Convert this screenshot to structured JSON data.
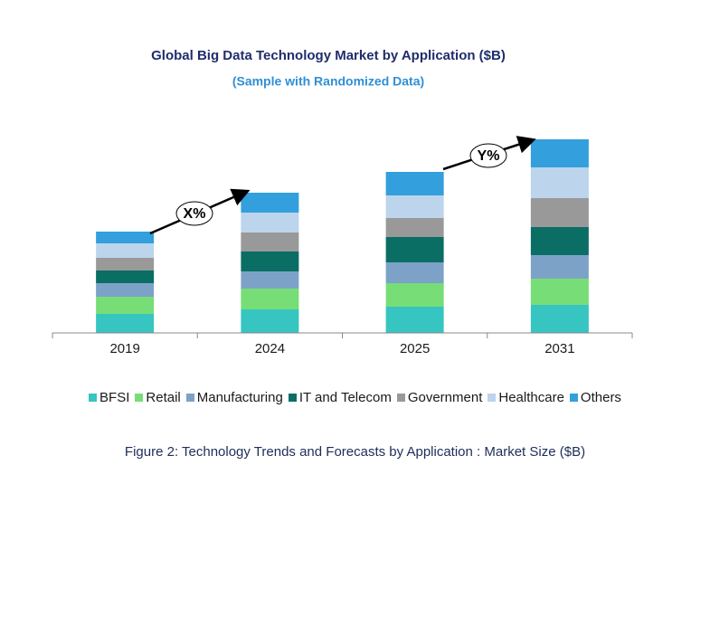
{
  "chart_data": {
    "type": "stacked-bar",
    "title": "Global Big Data Technology Market by Application ($B)",
    "subtitle": "(Sample with Randomized Data)",
    "categories": [
      "2019",
      "2024",
      "2025",
      "2031"
    ],
    "series": [
      {
        "name": "BFSI",
        "color": "#36c5c0",
        "values": [
          21,
          26,
          29,
          31
        ]
      },
      {
        "name": "Retail",
        "color": "#77dd77",
        "values": [
          19,
          23,
          26,
          29
        ]
      },
      {
        "name": "Manufacturing",
        "color": "#7da2c8",
        "values": [
          15,
          19,
          23,
          26
        ]
      },
      {
        "name": "IT and Telecom",
        "color": "#0a6e65",
        "values": [
          14,
          22,
          28,
          31
        ]
      },
      {
        "name": "Government",
        "color": "#999999",
        "values": [
          14,
          21,
          21,
          32
        ]
      },
      {
        "name": "Healthcare",
        "color": "#bcd4ec",
        "values": [
          16,
          22,
          25,
          34
        ]
      },
      {
        "name": "Others",
        "color": "#339fdc",
        "values": [
          13,
          22,
          26,
          31
        ]
      }
    ],
    "annotations": [
      "X%",
      "Y%"
    ],
    "caption": "Figure 2: Technology  Trends  and Forecasts by Application : Market Size ($B)"
  }
}
